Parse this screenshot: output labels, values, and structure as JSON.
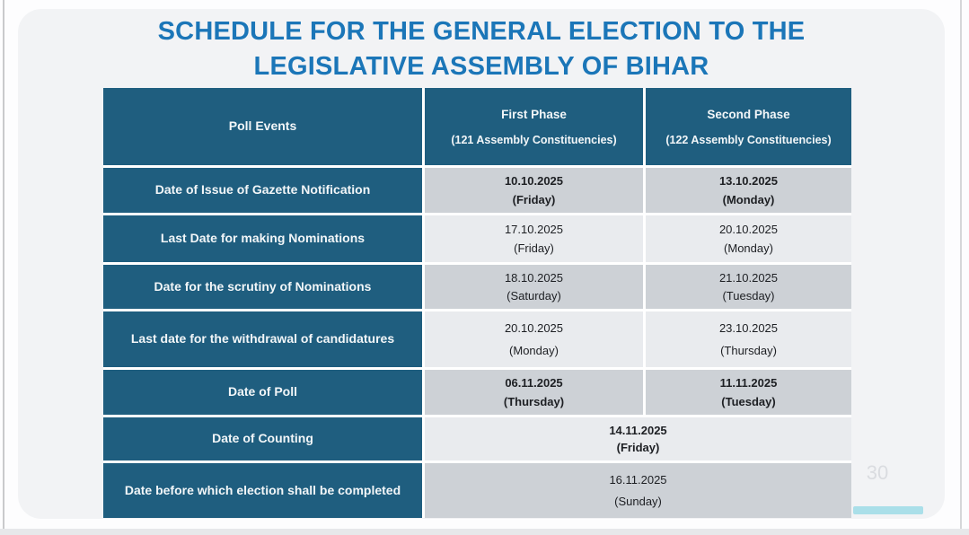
{
  "slide": {
    "title_line1": "SCHEDULE FOR THE GENERAL ELECTION TO THE",
    "title_line2": "LEGISLATIVE ASSEMBLY OF BIHAR",
    "page_number": "30"
  },
  "colors": {
    "title_blue": "#1b76b8",
    "header_teal": "#1f5e7f",
    "row_dark_gray": "#cdd1d6",
    "row_light_gray": "#e9ebee",
    "accent_cyan": "#aadfe9"
  },
  "table": {
    "header": {
      "poll_events": "Poll Events",
      "first_phase_title": "First Phase",
      "first_phase_subtitle": "(121 Assembly Constituencies)",
      "second_phase_title": "Second Phase",
      "second_phase_subtitle": "(122 Assembly Constituencies)"
    },
    "rows": [
      {
        "event": "Date of Issue of Gazette Notification",
        "first_date": "10.10.2025",
        "first_day": "(Friday)",
        "second_date": "13.10.2025",
        "second_day": "(Monday)"
      },
      {
        "event": "Last Date for making Nominations",
        "first_date": "17.10.2025",
        "first_day": "(Friday)",
        "second_date": "20.10.2025",
        "second_day": "(Monday)"
      },
      {
        "event": "Date for the scrutiny of Nominations",
        "first_date": "18.10.2025",
        "first_day": "(Saturday)",
        "second_date": "21.10.2025",
        "second_day": "(Tuesday)"
      },
      {
        "event": "Last date for the withdrawal of candidatures",
        "first_date": "20.10.2025",
        "first_day": "(Monday)",
        "second_date": "23.10.2025",
        "second_day": "(Thursday)"
      },
      {
        "event": "Date of Poll",
        "first_date": "06.11.2025",
        "first_day": "(Thursday)",
        "second_date": "11.11.2025",
        "second_day": "(Tuesday)"
      },
      {
        "event": "Date of Counting",
        "combined_date": "14.11.2025",
        "combined_day": "(Friday)"
      },
      {
        "event": "Date before which election shall be completed",
        "combined_date": "16.11.2025",
        "combined_day": "(Sunday)"
      }
    ]
  }
}
